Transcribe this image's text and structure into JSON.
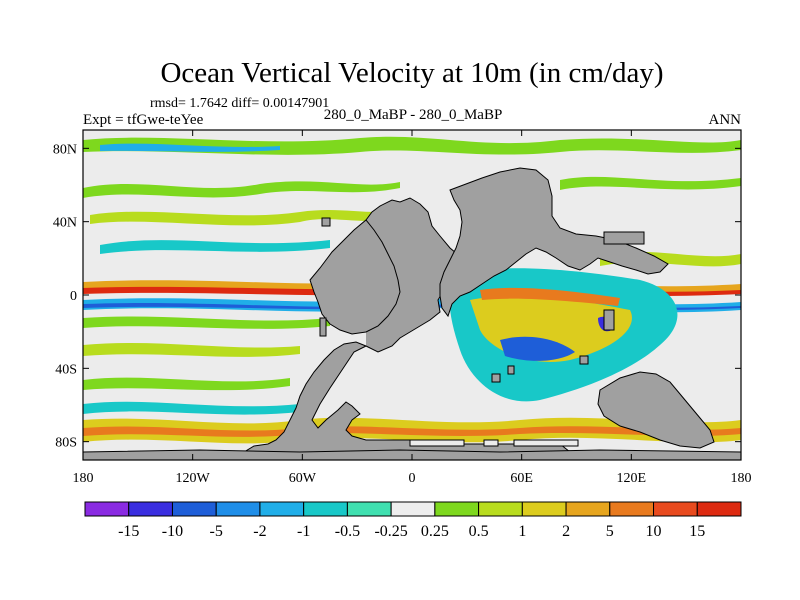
{
  "chart_data": {
    "type": "heatmap",
    "title": "Ocean Vertical Velocity at 10m (in cm/day)",
    "stats_text": "rmsd= 1.7642 diff= 0.00147901",
    "left_label": "Expt = tfGwe-teYee",
    "center_label": "280_0_MaBP - 280_0_MaBP",
    "right_label": "ANN",
    "x_ticks": [
      {
        "value": -180,
        "label": "180"
      },
      {
        "value": -120,
        "label": "120W"
      },
      {
        "value": -60,
        "label": "60W"
      },
      {
        "value": 0,
        "label": "0"
      },
      {
        "value": 60,
        "label": "60E"
      },
      {
        "value": 120,
        "label": "120E"
      },
      {
        "value": 180,
        "label": "180"
      }
    ],
    "y_ticks": [
      {
        "value": 80,
        "label": "80N"
      },
      {
        "value": 40,
        "label": "40N"
      },
      {
        "value": 0,
        "label": "0"
      },
      {
        "value": -40,
        "label": "40S"
      },
      {
        "value": -80,
        "label": "80S"
      }
    ],
    "xlim": [
      -180,
      180
    ],
    "ylim": [
      -90,
      90
    ],
    "colorbar": {
      "labels": [
        "-15",
        "-10",
        "-5",
        "-2",
        "-1",
        "-0.5",
        "-0.25",
        "0.25",
        "0.5",
        "1",
        "2",
        "5",
        "10",
        "15"
      ],
      "colors": [
        "#8a2be2",
        "#3a2ee0",
        "#1e5ed8",
        "#1f8ee8",
        "#20aee8",
        "#18c8c8",
        "#40e0b0",
        "#eeeeee",
        "#7ed81e",
        "#b8dc1e",
        "#dccc1e",
        "#e6a51e",
        "#e87a1e",
        "#e84a1e",
        "#dd2a10"
      ]
    },
    "land_color": "#a0a0a0"
  }
}
